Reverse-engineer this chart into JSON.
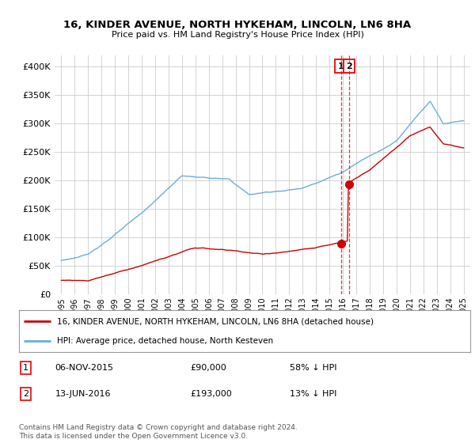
{
  "title": "16, KINDER AVENUE, NORTH HYKEHAM, LINCOLN, LN6 8HA",
  "subtitle": "Price paid vs. HM Land Registry's House Price Index (HPI)",
  "ylim": [
    0,
    420000
  ],
  "yticks": [
    0,
    50000,
    100000,
    150000,
    200000,
    250000,
    300000,
    350000,
    400000
  ],
  "xlim_start": 1994.5,
  "xlim_end": 2025.5,
  "hpi_color": "#6baed6",
  "price_color": "#cc0000",
  "vline_color": "#ee0000",
  "background_color": "#ffffff",
  "grid_color": "#cccccc",
  "sale1_x": 2015.85,
  "sale1_y": 90000,
  "sale1_label": "1",
  "sale2_x": 2016.45,
  "sale2_y": 193000,
  "sale2_label": "2",
  "legend_line1": "16, KINDER AVENUE, NORTH HYKEHAM, LINCOLN, LN6 8HA (detached house)",
  "legend_line2": "HPI: Average price, detached house, North Kesteven",
  "annot1_date": "06-NOV-2015",
  "annot1_price": "£90,000",
  "annot1_hpi": "58% ↓ HPI",
  "annot2_date": "13-JUN-2016",
  "annot2_price": "£193,000",
  "annot2_hpi": "13% ↓ HPI",
  "footnote": "Contains HM Land Registry data © Crown copyright and database right 2024.\nThis data is licensed under the Open Government Licence v3.0."
}
